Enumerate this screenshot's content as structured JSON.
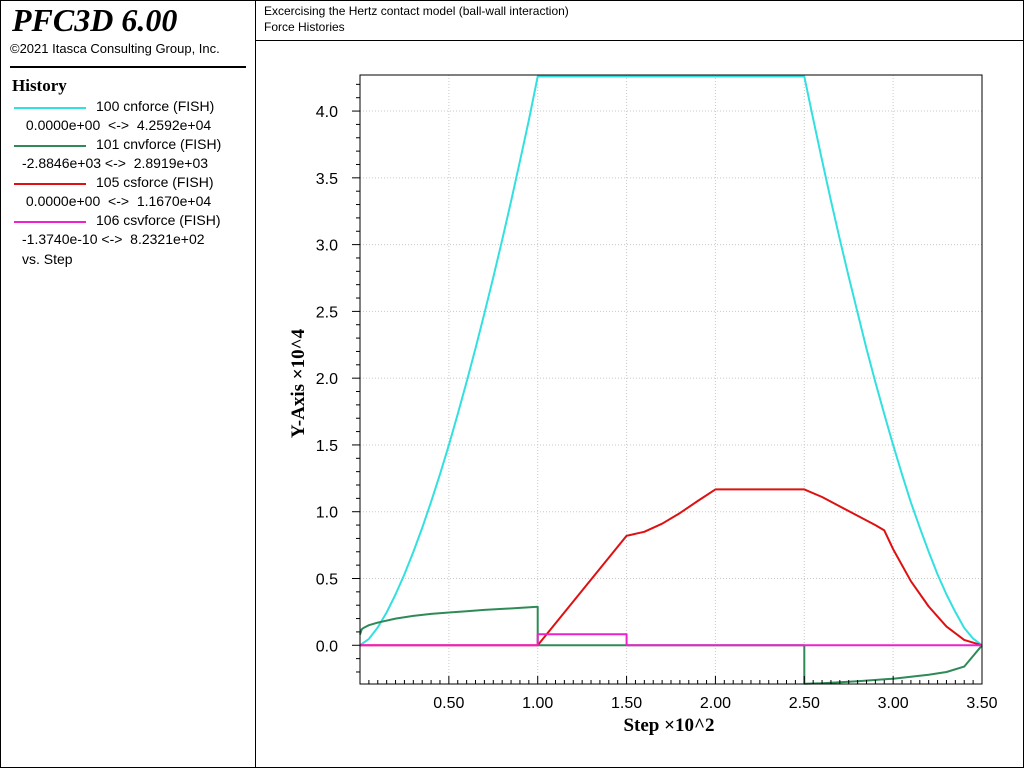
{
  "app": {
    "title": "PFC3D 6.00",
    "copyright": "©2021 Itasca Consulting Group, Inc."
  },
  "header": {
    "line1": "Excercising the Hertz contact model (ball-wall interaction)",
    "line2": "Force Histories"
  },
  "legend": {
    "heading": "History",
    "entries": [
      {
        "name": "100 cnforce (FISH)",
        "range": " 0.0000e+00  <->  4.2592e+04",
        "color": "#33e0e0"
      },
      {
        "name": "101 cnvforce (FISH)",
        "range": "-2.8846e+03 <->  2.8919e+03",
        "color": "#2e8b57"
      },
      {
        "name": "105 csforce (FISH)",
        "range": " 0.0000e+00  <->  1.1670e+04",
        "color": "#dd1111"
      },
      {
        "name": "106 csvforce (FISH)",
        "range": "-1.3740e-10 <->  8.2321e+02",
        "color": "#ee22cc"
      }
    ],
    "footer": "vs. Step"
  },
  "chart_data": {
    "type": "line",
    "xlabel": "Step ×10^2",
    "ylabel": "Y-Axis ×10^4",
    "xlim": [
      0.0,
      3.5
    ],
    "ylim": [
      -0.29,
      4.27
    ],
    "xticks": [
      0.5,
      1.0,
      1.5,
      2.0,
      2.5,
      3.0,
      3.5
    ],
    "xtick_labels": [
      "0.50",
      "1.00",
      "1.50",
      "2.00",
      "2.50",
      "3.00",
      "3.50"
    ],
    "yticks": [
      0.0,
      0.5,
      1.0,
      1.5,
      2.0,
      2.5,
      3.0,
      3.5,
      4.0
    ],
    "ytick_labels": [
      "0.0",
      "0.5",
      "1.0",
      "1.5",
      "2.0",
      "2.5",
      "3.0",
      "3.5",
      "4.0"
    ],
    "grid": true,
    "series": [
      {
        "name": "100 cnforce (FISH)",
        "color": "#33e0e0",
        "x": [
          0,
          0.05,
          0.1,
          0.15,
          0.2,
          0.25,
          0.3,
          0.35,
          0.4,
          0.45,
          0.5,
          0.55,
          0.6,
          0.65,
          0.7,
          0.75,
          0.8,
          0.85,
          0.9,
          0.95,
          1.0,
          1.5,
          2.0,
          2.5,
          2.55,
          2.6,
          2.65,
          2.7,
          2.75,
          2.8,
          2.85,
          2.9,
          2.95,
          3.0,
          3.05,
          3.1,
          3.15,
          3.2,
          3.25,
          3.3,
          3.35,
          3.4,
          3.45,
          3.5
        ],
        "y": [
          0,
          0.048,
          0.134,
          0.247,
          0.38,
          0.531,
          0.698,
          0.879,
          1.074,
          1.281,
          1.5,
          1.73,
          1.972,
          2.223,
          2.485,
          2.756,
          3.036,
          3.326,
          3.624,
          3.93,
          4.259,
          4.259,
          4.259,
          4.259,
          3.94,
          3.63,
          3.33,
          3.04,
          2.76,
          2.49,
          2.22,
          1.97,
          1.73,
          1.5,
          1.28,
          1.07,
          0.88,
          0.7,
          0.53,
          0.38,
          0.25,
          0.13,
          0.05,
          0
        ]
      },
      {
        "name": "101 cnvforce (FISH)",
        "color": "#2e8b57",
        "x": [
          0,
          0.005,
          0.01,
          0.02,
          0.05,
          0.1,
          0.2,
          0.3,
          0.4,
          0.5,
          0.6,
          0.7,
          0.8,
          0.9,
          1.0,
          1.0,
          1.5,
          2.0,
          2.499,
          2.5,
          2.5,
          2.6,
          2.8,
          3.0,
          3.2,
          3.3,
          3.4,
          3.45,
          3.5
        ],
        "y": [
          0.08,
          0.1,
          0.12,
          0.13,
          0.15,
          0.17,
          0.2,
          0.22,
          0.235,
          0.245,
          0.255,
          0.265,
          0.272,
          0.28,
          0.289,
          0,
          0,
          0,
          0,
          0,
          -0.288,
          -0.285,
          -0.27,
          -0.25,
          -0.22,
          -0.2,
          -0.16,
          -0.08,
          0
        ]
      },
      {
        "name": "105 csforce (FISH)",
        "color": "#dd1111",
        "x": [
          0,
          1.0,
          1.5,
          1.6,
          1.7,
          1.8,
          1.9,
          2.0,
          2.5,
          2.6,
          2.7,
          2.8,
          2.9,
          2.95,
          3.0,
          3.1,
          3.2,
          3.3,
          3.4,
          3.5
        ],
        "y": [
          0,
          0,
          0.82,
          0.85,
          0.91,
          0.99,
          1.08,
          1.167,
          1.167,
          1.11,
          1.04,
          0.97,
          0.9,
          0.86,
          0.72,
          0.48,
          0.29,
          0.14,
          0.04,
          0
        ]
      },
      {
        "name": "106 csvforce (FISH)",
        "color": "#ee22cc",
        "x": [
          0,
          1.0,
          1.0,
          1.5,
          1.5,
          3.5
        ],
        "y": [
          0,
          0,
          0.082,
          0.082,
          0,
          0
        ]
      }
    ]
  }
}
